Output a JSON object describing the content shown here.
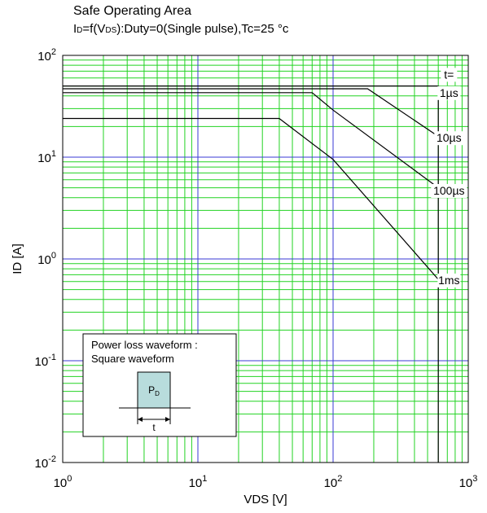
{
  "title": "Safe Operating Area",
  "subtitle": {
    "i": "I",
    "d": "D",
    "mid": "=f(V",
    "ds": "DS",
    "rest": "):Duty=0(Single pulse),Tc=25 °c"
  },
  "chart_data": {
    "type": "line",
    "title": "Safe Operating Area",
    "xlabel": "VDS [V]",
    "ylabel": "ID [A]",
    "xscale": "log",
    "yscale": "log",
    "xlim": [
      1,
      1000
    ],
    "ylim": [
      0.01,
      100
    ],
    "x_ticks": [
      {
        "value": 1,
        "base": "10",
        "exp": "0"
      },
      {
        "value": 10,
        "base": "10",
        "exp": "1"
      },
      {
        "value": 100,
        "base": "10",
        "exp": "2"
      },
      {
        "value": 1000,
        "base": "10",
        "exp": "3"
      }
    ],
    "y_ticks": [
      {
        "value": 0.01,
        "base": "10",
        "exp": "-2"
      },
      {
        "value": 0.1,
        "base": "10",
        "exp": "-1"
      },
      {
        "value": 1,
        "base": "10",
        "exp": "0"
      },
      {
        "value": 10,
        "base": "10",
        "exp": "1"
      },
      {
        "value": 100,
        "base": "10",
        "exp": "2"
      }
    ],
    "grid": true,
    "grid_major_color": "#3a3ad6",
    "grid_minor_color": "#22d322",
    "line_color": "#000000",
    "legend_header": "t=",
    "series": [
      {
        "name": "1µs",
        "x": [
          1,
          600,
          600
        ],
        "y": [
          50,
          50,
          16
        ]
      },
      {
        "name": "10µs",
        "x": [
          1,
          180,
          600
        ],
        "y": [
          47,
          47,
          16
        ]
      },
      {
        "name": "100µs",
        "x": [
          1,
          70,
          100,
          600
        ],
        "y": [
          43,
          43,
          29,
          5
        ]
      },
      {
        "name": "1ms",
        "x": [
          1,
          40,
          100,
          600
        ],
        "y": [
          24,
          24,
          9.5,
          0.63
        ]
      },
      {
        "name": "",
        "x": [
          600,
          600
        ],
        "y": [
          16,
          0.01
        ]
      }
    ],
    "series_labels": [
      {
        "text": "t=",
        "x": 720,
        "y": 65
      },
      {
        "text": "1µs",
        "x": 720,
        "y": 43
      },
      {
        "text": "10µs",
        "x": 720,
        "y": 15.5
      },
      {
        "text": "100µs",
        "x": 720,
        "y": 4.7
      },
      {
        "text": "1ms",
        "x": 720,
        "y": 0.62
      }
    ]
  },
  "inset": {
    "line1": "Power loss waveform :",
    "line2": "Square waveform",
    "pulse_label": "P",
    "pulse_sub": "D",
    "width_label": "t",
    "pulse_fill": "#b8dcdc"
  }
}
